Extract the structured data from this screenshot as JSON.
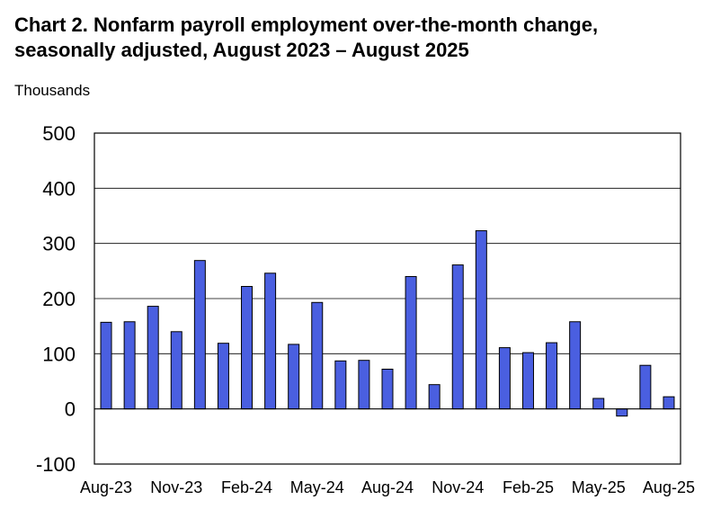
{
  "chart_data": {
    "type": "bar",
    "title_line1": "Chart 2. Nonfarm payroll employment over-the-month change,",
    "title_line2": "seasonally adjusted, August 2023 – August 2025",
    "ylabel": "Thousands",
    "xlabel": "",
    "ylim": [
      -100,
      500
    ],
    "yticks": [
      "500",
      "400",
      "300",
      "200",
      "100",
      "0",
      "-100"
    ],
    "grid": true,
    "legend": "none",
    "bar_color": "#4a5fe0",
    "categories": [
      "Aug-23",
      "Sep-23",
      "Oct-23",
      "Nov-23",
      "Dec-23",
      "Jan-24",
      "Feb-24",
      "Mar-24",
      "Apr-24",
      "May-24",
      "Jun-24",
      "Jul-24",
      "Aug-24",
      "Sep-24",
      "Oct-24",
      "Nov-24",
      "Dec-24",
      "Jan-25",
      "Feb-25",
      "Mar-25",
      "Apr-25",
      "May-25",
      "Jun-25",
      "Jul-25",
      "Aug-25"
    ],
    "xtick_labels": [
      "Aug-23",
      "Nov-23",
      "Feb-24",
      "May-24",
      "Aug-24",
      "Nov-24",
      "Feb-25",
      "May-25",
      "Aug-25"
    ],
    "values": [
      157,
      158,
      186,
      140,
      269,
      119,
      222,
      246,
      117,
      193,
      87,
      88,
      72,
      240,
      44,
      261,
      323,
      111,
      102,
      120,
      158,
      19,
      -13,
      79,
      22
    ]
  }
}
